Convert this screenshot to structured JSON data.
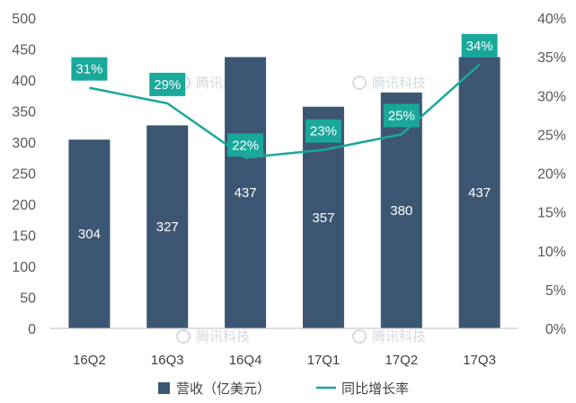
{
  "watermark": "腾讯科技",
  "chart_data": {
    "type": "bar",
    "categories": [
      "16Q2",
      "16Q3",
      "16Q4",
      "17Q1",
      "17Q2",
      "17Q3"
    ],
    "series": [
      {
        "name": "营收（亿美元）",
        "type": "bar",
        "axis": "left",
        "values": [
          304,
          327,
          437,
          357,
          380,
          437
        ],
        "labels": [
          "304",
          "327",
          "437",
          "357",
          "380",
          "437"
        ]
      },
      {
        "name": "同比增长率",
        "type": "line",
        "axis": "right",
        "values": [
          0.31,
          0.29,
          0.22,
          0.23,
          0.25,
          0.34
        ],
        "labels": [
          "31%",
          "29%",
          "22%",
          "23%",
          "25%",
          "34%"
        ]
      }
    ],
    "y_left": {
      "min": 0,
      "max": 500,
      "ticks": [
        "0",
        "50",
        "100",
        "150",
        "200",
        "250",
        "300",
        "350",
        "400",
        "450",
        "500"
      ]
    },
    "y_right": {
      "min": 0,
      "max": 0.4,
      "ticks": [
        "0%",
        "5%",
        "10%",
        "15%",
        "20%",
        "25%",
        "30%",
        "35%",
        "40%"
      ]
    },
    "legend_position": "bottom-center",
    "grid": false,
    "colors": {
      "bar": "#3d5673",
      "line": "#1aa89b",
      "label_box": "#1aa89b",
      "tick_text": "#595959"
    }
  }
}
